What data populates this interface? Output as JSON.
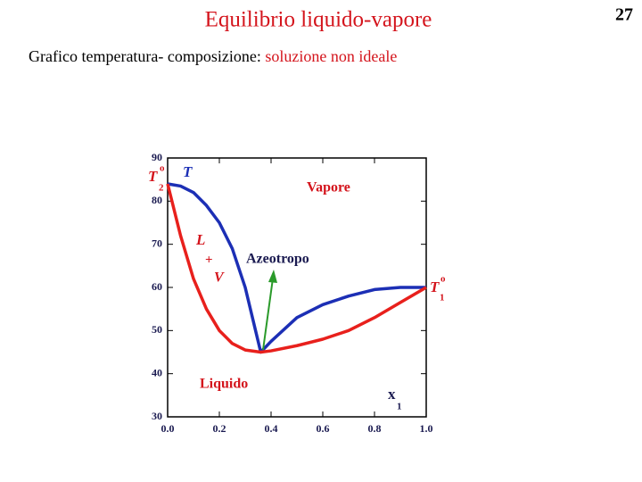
{
  "page_number": "27",
  "header": {
    "title": "Equilibrio liquido-vapore",
    "subtitle": "Grafico temperatura- composizione: ",
    "subtitle_highlight": "soluzione non ideale"
  },
  "chart_data": {
    "type": "line",
    "x": [
      0,
      0.05,
      0.1,
      0.15,
      0.2,
      0.25,
      0.3,
      0.36,
      0.4,
      0.5,
      0.6,
      0.7,
      0.8,
      0.9,
      1.0
    ],
    "series": [
      {
        "color": "#1c2fb5",
        "values": [
          84,
          83.5,
          82,
          79,
          75,
          69,
          60,
          45,
          47.5,
          53,
          56,
          58,
          59.5,
          60,
          60
        ]
      },
      {
        "color": "#e8201c",
        "values": [
          84,
          72,
          62,
          55,
          50,
          47,
          45.5,
          45,
          45.3,
          46.5,
          48,
          50,
          53,
          56.5,
          60
        ]
      }
    ],
    "xlim": [
      0,
      1
    ],
    "ylim": [
      30,
      90
    ],
    "xticks": [
      {
        "value": 0,
        "label": "0.0"
      },
      {
        "value": 0.2,
        "label": "0.2"
      },
      {
        "value": 0.4,
        "label": "0.4"
      },
      {
        "value": 0.6,
        "label": "0.6"
      },
      {
        "value": 0.8,
        "label": "0.8"
      },
      {
        "value": 1,
        "label": "1.0"
      }
    ],
    "yticks": [
      30,
      40,
      50,
      60,
      70,
      80,
      90
    ],
    "annotations": {
      "t2": "T",
      "t2_sup": "o",
      "t2_sub": "2",
      "t": "T",
      "vapore": "Vapore",
      "l": "L",
      "plus": "+",
      "v": "V",
      "azeotropo": "Azeotropo",
      "liquido": "Liquido",
      "x1": "x",
      "x1_sub": "1",
      "t1": "T",
      "t1_sup": "o",
      "t1_sub": "1"
    }
  }
}
